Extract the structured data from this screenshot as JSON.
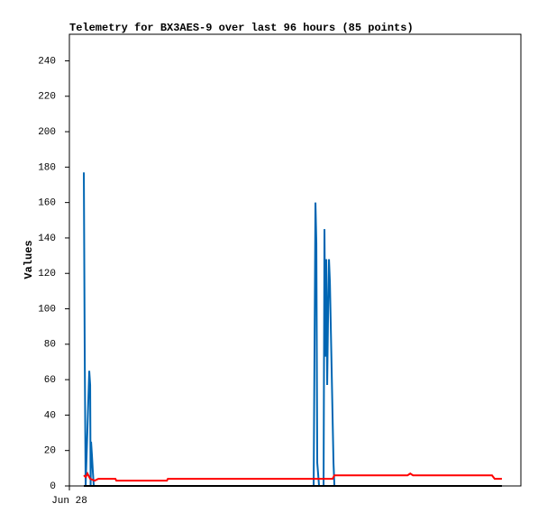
{
  "chart_data": {
    "type": "line",
    "title": "Telemetry for BX3AES-9 over last 96 hours (85 points)",
    "y_label": "Values",
    "xlim": [
      0,
      100
    ],
    "xticks": [
      {
        "value": 0,
        "label": "Jun 28"
      }
    ],
    "ylim": [
      0,
      255
    ],
    "yticks": [
      0,
      20,
      40,
      60,
      80,
      100,
      120,
      140,
      160,
      180,
      200,
      220,
      240
    ],
    "grid": false,
    "series": [
      {
        "color": "#0066b3",
        "x": [
          3.2,
          3.4,
          3.6,
          4.4,
          4.6,
          4.7,
          4.8,
          5.0,
          5.2,
          5.4,
          54.1,
          54.3,
          54.5,
          54.7,
          54.9,
          55.3,
          56.3,
          56.5,
          56.7,
          56.9,
          57.1,
          57.3,
          57.5,
          57.7,
          58.1,
          58.3,
          58.5,
          58.7,
          95.8
        ],
        "values": [
          177,
          73,
          0,
          65,
          57,
          0,
          25,
          17,
          8,
          0,
          0,
          80,
          160,
          137,
          13,
          0,
          0,
          145,
          73,
          128,
          57,
          97,
          128,
          115,
          64,
          38,
          13,
          0,
          0
        ]
      },
      {
        "color": "#ff0000",
        "x": [
          3.2,
          3.6,
          4.0,
          4.6,
          5.6,
          6.4,
          10.2,
          10.4,
          21.6,
          21.8,
          43.6,
          58.3,
          58.7,
          74.9,
          75.5,
          76.1,
          93.6,
          94.2,
          95.8
        ],
        "values": [
          6,
          5,
          7,
          4,
          3,
          4,
          4,
          3,
          3,
          4,
          4,
          4,
          6,
          6,
          7,
          6,
          6,
          4,
          4
        ]
      },
      {
        "color": "#000000",
        "x": [
          3.2,
          95.8
        ],
        "values": [
          0,
          0
        ]
      }
    ]
  }
}
